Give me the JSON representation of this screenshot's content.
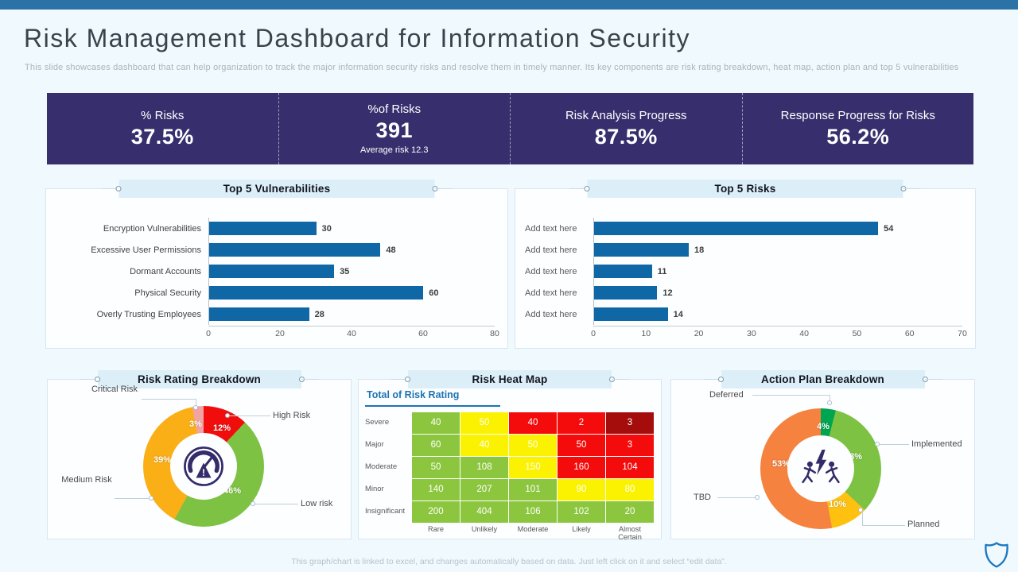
{
  "slide": {
    "title": "Risk Management Dashboard for Information Security",
    "subtitle": "This slide showcases dashboard that can help organization to track the major information security risks and resolve them in timely manner. Its key components are risk rating breakdown, heat map, action plan and top 5 vulnerabilities",
    "footer": "This graph/chart is linked to excel, and changes automatically based on data. Just left click on it and select “edit data”."
  },
  "kpis": [
    {
      "label": "% Risks",
      "value": "37.5%",
      "note": ""
    },
    {
      "label": "%of Risks",
      "value": "391",
      "note": "Average risk 12.3"
    },
    {
      "label": "Risk Analysis Progress",
      "value": "87.5%",
      "note": ""
    },
    {
      "label": "Response Progress for Risks",
      "value": "56.2%",
      "note": ""
    }
  ],
  "icons": {
    "band_handles": "connector-dot-icon",
    "risk_rating_center": "gauge-warning-icon",
    "action_plan_center": "people-lightning-icon",
    "corner": "shield-icon"
  },
  "colors": {
    "top_bar": "#2b73a6",
    "kpi_bg": "#372e6d",
    "background": "#f0f9fd",
    "panel_bg": "#fdfeff",
    "band_bg": "#dceef8",
    "bar_blue": "#0f67a5",
    "heatmap_header_blue": "#1b74b4",
    "icon_navy": "#332c6b",
    "shield_blue": "#1b78c0"
  },
  "chart_data": [
    {
      "type": "bar",
      "orientation": "horizontal",
      "title": "Top 5 Vulnerabilities",
      "categories": [
        "Encryption Vulnerabilities",
        "Excessive User Permissions",
        "Dormant Accounts",
        "Physical Security",
        "Overly Trusting Employees"
      ],
      "values": [
        30,
        48,
        35,
        60,
        28
      ],
      "xlim": [
        0,
        80
      ],
      "xticks": [
        "0",
        "20",
        "40",
        "60",
        "80"
      ],
      "bar_color": "#0f67a5",
      "grid": false
    },
    {
      "type": "bar",
      "orientation": "horizontal",
      "title": "Top 5 Risks",
      "categories": [
        "Add text here",
        "Add text here",
        "Add text here",
        "Add text here",
        "Add text here"
      ],
      "values": [
        54,
        18,
        11,
        12,
        14
      ],
      "xlim": [
        0,
        70
      ],
      "xticks": [
        "0",
        "10",
        "20",
        "30",
        "40",
        "50",
        "60",
        "70"
      ],
      "bar_color": "#0f67a5",
      "grid": false
    },
    {
      "type": "pie",
      "donut": true,
      "title": "Risk Rating Breakdown",
      "slices": [
        {
          "label": "High Risk",
          "value": 12,
          "pct": "12%",
          "color": "#f20d0d"
        },
        {
          "label": "Low risk",
          "value": 46,
          "pct": "46%",
          "color": "#7dc242"
        },
        {
          "label": "Medium Risk",
          "value": 39,
          "pct": "39%",
          "color": "#fbaf17"
        },
        {
          "label": "Critical Risk",
          "value": 3,
          "pct": "3%",
          "color": "#f2a3a3"
        }
      ]
    },
    {
      "type": "heatmap",
      "title": "Risk Heat Map",
      "subtitle": "Total of Risk Rating",
      "rows": [
        "Severe",
        "Major",
        "Moderate",
        "Minor",
        "Insignificant"
      ],
      "cols": [
        "Rare",
        "Unlikely",
        "Moderate",
        "Likely",
        "Almost Certain"
      ],
      "values": [
        [
          40,
          50,
          40,
          2,
          3
        ],
        [
          60,
          40,
          50,
          50,
          3
        ],
        [
          50,
          108,
          150,
          160,
          104
        ],
        [
          140,
          207,
          101,
          90,
          80
        ],
        [
          200,
          404,
          106,
          102,
          20
        ]
      ],
      "cell_colors": [
        [
          "G",
          "Y",
          "R",
          "R",
          "D"
        ],
        [
          "G",
          "Y",
          "Y",
          "R",
          "R"
        ],
        [
          "G",
          "G",
          "Y",
          "R",
          "R"
        ],
        [
          "G",
          "G",
          "G",
          "Y",
          "Y"
        ],
        [
          "G",
          "G",
          "G",
          "G",
          "G"
        ]
      ],
      "palette": {
        "G": "#8cc63f",
        "Y": "#faf200",
        "R": "#f40b0b",
        "D": "#a50d0d"
      }
    },
    {
      "type": "pie",
      "donut": true,
      "title": "Action Plan Breakdown",
      "slices": [
        {
          "label": "Deferred",
          "value": 4,
          "pct": "4%",
          "color": "#00a551"
        },
        {
          "label": "Implemented",
          "value": 33,
          "pct": "33%",
          "color": "#7dc242"
        },
        {
          "label": "Planned",
          "value": 10,
          "pct": "10%",
          "color": "#fec110"
        },
        {
          "label": "TBD",
          "value": 53,
          "pct": "53%",
          "color": "#f5823e"
        }
      ]
    }
  ]
}
